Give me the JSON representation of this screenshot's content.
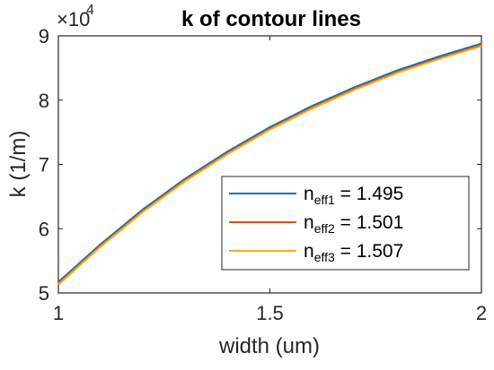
{
  "chart_data": {
    "type": "line",
    "title": "k of contour lines",
    "xlabel": "width (um)",
    "ylabel": "k (1/m)",
    "y_multiplier": {
      "base": "×10",
      "exponent": "4"
    },
    "xlim": [
      1,
      2
    ],
    "ylim": [
      5,
      9
    ],
    "xticks": [
      1,
      1.5,
      2
    ],
    "xtick_labels": [
      "1",
      "1.5",
      "2"
    ],
    "yticks": [
      5,
      6,
      7,
      8,
      9
    ],
    "ytick_labels": [
      "5",
      "6",
      "7",
      "8",
      "9"
    ],
    "grid": false,
    "legend_position": "bottom-right",
    "x": [
      1.0,
      1.1,
      1.2,
      1.3,
      1.4,
      1.5,
      1.6,
      1.7,
      1.8,
      1.9,
      2.0
    ],
    "series": [
      {
        "name_main": "n",
        "name_sub": "eff1",
        "name_rest": " = 1.495",
        "color": "#0072BD",
        "values": [
          5.17,
          5.76,
          6.3,
          6.78,
          7.2,
          7.58,
          7.91,
          8.2,
          8.46,
          8.68,
          8.88
        ]
      },
      {
        "name_main": "n",
        "name_sub": "eff2",
        "name_rest": " = 1.501",
        "color": "#D95319",
        "values": [
          5.15,
          5.74,
          6.28,
          6.76,
          7.18,
          7.56,
          7.89,
          8.18,
          8.44,
          8.66,
          8.86
        ]
      },
      {
        "name_main": "n",
        "name_sub": "eff3",
        "name_rest": " = 1.507",
        "color": "#EDB120",
        "values": [
          5.13,
          5.72,
          6.26,
          6.74,
          7.16,
          7.54,
          7.87,
          8.16,
          8.42,
          8.64,
          8.84
        ]
      }
    ]
  }
}
